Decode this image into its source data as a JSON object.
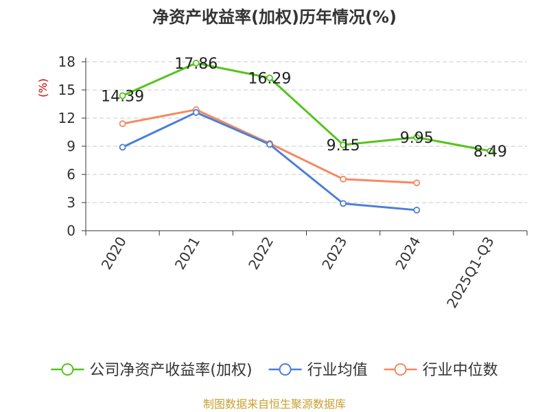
{
  "chart_data": {
    "type": "line",
    "title": "净资产收益率(加权)历年情况(%)",
    "ylabel": "(%)",
    "xlabel": "",
    "categories": [
      "2020",
      "2021",
      "2022",
      "2023",
      "2024",
      "2025Q1-Q3"
    ],
    "ylim": [
      0,
      18
    ],
    "yticks": [
      0,
      3,
      6,
      9,
      12,
      15,
      18
    ],
    "grid": true,
    "legend_position": "bottom",
    "series": [
      {
        "name": "公司净资产收益率(加权)",
        "color": "#52c41a",
        "values": [
          14.39,
          17.86,
          16.29,
          9.15,
          9.95,
          8.49
        ],
        "labels": [
          "14.39",
          "17.86",
          "16.29",
          "9.15",
          "9.95",
          "8.49"
        ]
      },
      {
        "name": "行业均值",
        "color": "#4a7fd8",
        "values": [
          8.9,
          12.6,
          9.2,
          2.9,
          2.2,
          null
        ]
      },
      {
        "name": "行业中位数",
        "color": "#f4895f",
        "values": [
          11.4,
          12.9,
          9.3,
          5.5,
          5.1,
          null
        ]
      }
    ]
  },
  "source": "制图数据来自恒生聚源数据库"
}
